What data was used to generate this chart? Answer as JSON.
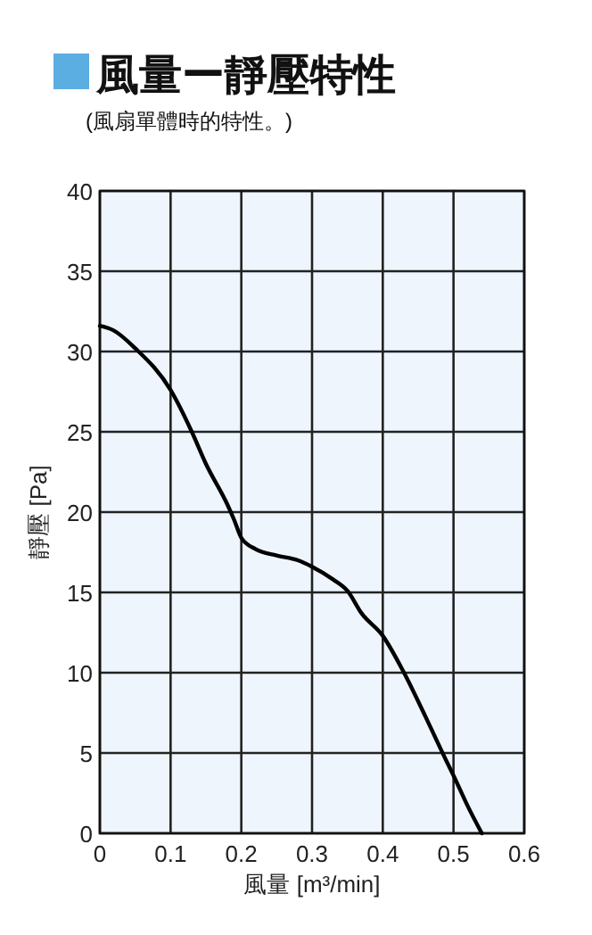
{
  "chart_data": {
    "type": "line",
    "title": "風量ー靜壓特性",
    "subtitle": "(風扇單體時的特性。)",
    "xlabel": "風量 [m³/min]",
    "ylabel": "靜壓 [Pa]",
    "xlim": [
      0,
      0.6
    ],
    "xticks": [
      0,
      0.1,
      0.2,
      0.3,
      0.4,
      0.5,
      0.6
    ],
    "ylim": [
      0,
      40
    ],
    "yticks": [
      0,
      5,
      10,
      15,
      20,
      25,
      30,
      35,
      40
    ],
    "grid": true,
    "marker": "none",
    "line_style": "solid",
    "series": [
      {
        "color": "#000000",
        "x": [
          0,
          0.02,
          0.05,
          0.1,
          0.13,
          0.15,
          0.18,
          0.19,
          0.2,
          0.22,
          0.25,
          0.28,
          0.3,
          0.33,
          0.35,
          0.37,
          0.4,
          0.43,
          0.46,
          0.49,
          0.5,
          0.52,
          0.54
        ],
        "values": [
          31.6,
          31.3,
          30.2,
          27.6,
          25,
          23,
          20.5,
          19.5,
          18.4,
          17.7,
          17.3,
          17,
          16.6,
          15.8,
          15.1,
          13.7,
          12.3,
          10,
          7.3,
          4.5,
          3.6,
          1.7,
          0
        ]
      }
    ]
  }
}
